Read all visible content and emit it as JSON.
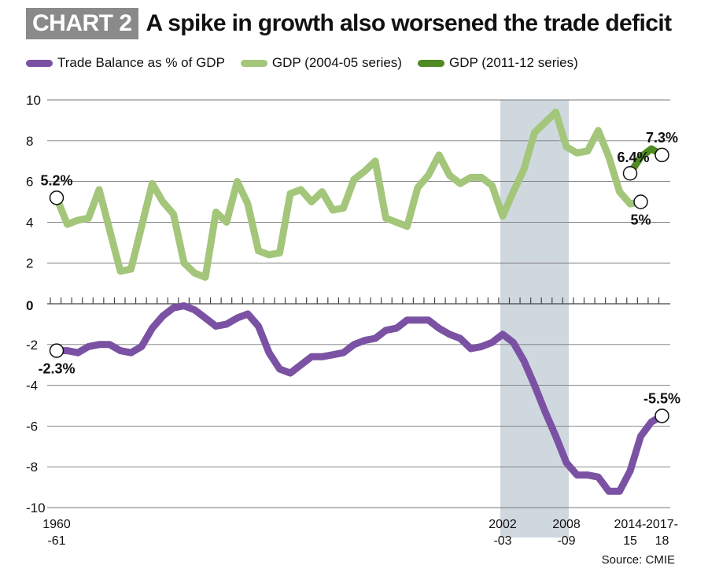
{
  "header": {
    "badge": "CHART 2",
    "title": "A spike in growth also worsened the trade deficit"
  },
  "legend": [
    {
      "label": "Trade Balance as % of GDP",
      "color": "#7b52a3"
    },
    {
      "label": "GDP (2004-05 series)",
      "color": "#a3c67a"
    },
    {
      "label": "GDP (2011-12 series)",
      "color": "#4f8a22"
    }
  ],
  "source": "Source: CMIE",
  "chart_data": {
    "type": "line",
    "ylim": [
      -10,
      10
    ],
    "yticks": [
      "10",
      "8",
      "6",
      "4",
      "2",
      "0",
      "-2",
      "-4",
      "-6",
      "-8",
      "-10"
    ],
    "x_tick_labels": [
      {
        "year_index": 0,
        "line1": "1960",
        "line2": "-61"
      },
      {
        "year_index": 42,
        "line1": "2002",
        "line2": "-03"
      },
      {
        "year_index": 48,
        "line1": "2008",
        "line2": "-09"
      },
      {
        "year_index": 54,
        "line1": "2014-",
        "line2": "15"
      },
      {
        "year_index": 57,
        "line1": "2017-",
        "line2": "18"
      }
    ],
    "shaded_period": {
      "start_index": 42,
      "end_index": 48
    },
    "series": [
      {
        "name": "Trade Balance as % of GDP",
        "color": "#7b52a3",
        "start_index": 0,
        "values": [
          -2.3,
          -2.3,
          -2.4,
          -2.1,
          -2.0,
          -2.0,
          -2.3,
          -2.4,
          -2.1,
          -1.2,
          -0.6,
          -0.2,
          -0.1,
          -0.3,
          -0.7,
          -1.1,
          -1.0,
          -0.7,
          -0.5,
          -1.1,
          -2.4,
          -3.2,
          -3.4,
          -3.0,
          -2.6,
          -2.6,
          -2.5,
          -2.4,
          -2.0,
          -1.8,
          -1.7,
          -1.3,
          -1.2,
          -0.8,
          -0.8,
          -0.8,
          -1.2,
          -1.5,
          -1.7,
          -2.2,
          -2.1,
          -1.9,
          -1.5,
          -1.9,
          -2.8,
          -4.0,
          -5.3,
          -6.5,
          -7.8,
          -8.4,
          -8.4,
          -8.5,
          -9.2,
          -9.2,
          -8.2,
          -6.5,
          -5.8,
          -5.5
        ]
      },
      {
        "name": "GDP (2004-05 series)",
        "color": "#a3c67a",
        "start_index": 0,
        "values": [
          5.2,
          3.9,
          4.1,
          4.2,
          5.6,
          3.6,
          1.6,
          1.7,
          3.8,
          5.9,
          5.0,
          4.4,
          2.0,
          1.5,
          1.3,
          4.5,
          4.0,
          6.0,
          4.9,
          2.6,
          2.4,
          2.5,
          5.4,
          5.6,
          5.0,
          5.5,
          4.6,
          4.7,
          6.1,
          6.5,
          7.0,
          4.2,
          4.0,
          3.8,
          5.7,
          6.3,
          7.3,
          6.3,
          5.9,
          6.2,
          6.2,
          5.8,
          4.3,
          5.5,
          6.6,
          8.4,
          8.9,
          9.4,
          7.7,
          7.4,
          7.5,
          8.5,
          7.2,
          5.5,
          4.9,
          5.0
        ]
      },
      {
        "name": "GDP (2011-12 series)",
        "color": "#4f8a22",
        "start_index": 54,
        "values": [
          6.4,
          7.2,
          7.6,
          7.3
        ]
      }
    ],
    "annotations": [
      {
        "series": 0,
        "point_index": 0,
        "text": "-2.3%",
        "placement": "below"
      },
      {
        "series": 0,
        "point_index": 57,
        "text": "-5.5%",
        "placement": "above"
      },
      {
        "series": 1,
        "point_index": 0,
        "text": "5.2%",
        "placement": "above"
      },
      {
        "series": 1,
        "point_index": 55,
        "text": "5%",
        "placement": "below"
      },
      {
        "series": 2,
        "point_index": 54,
        "text": "6.4%",
        "placement": "above-left"
      },
      {
        "series": 2,
        "point_index": 57,
        "text": "7.3%",
        "placement": "above"
      }
    ]
  }
}
